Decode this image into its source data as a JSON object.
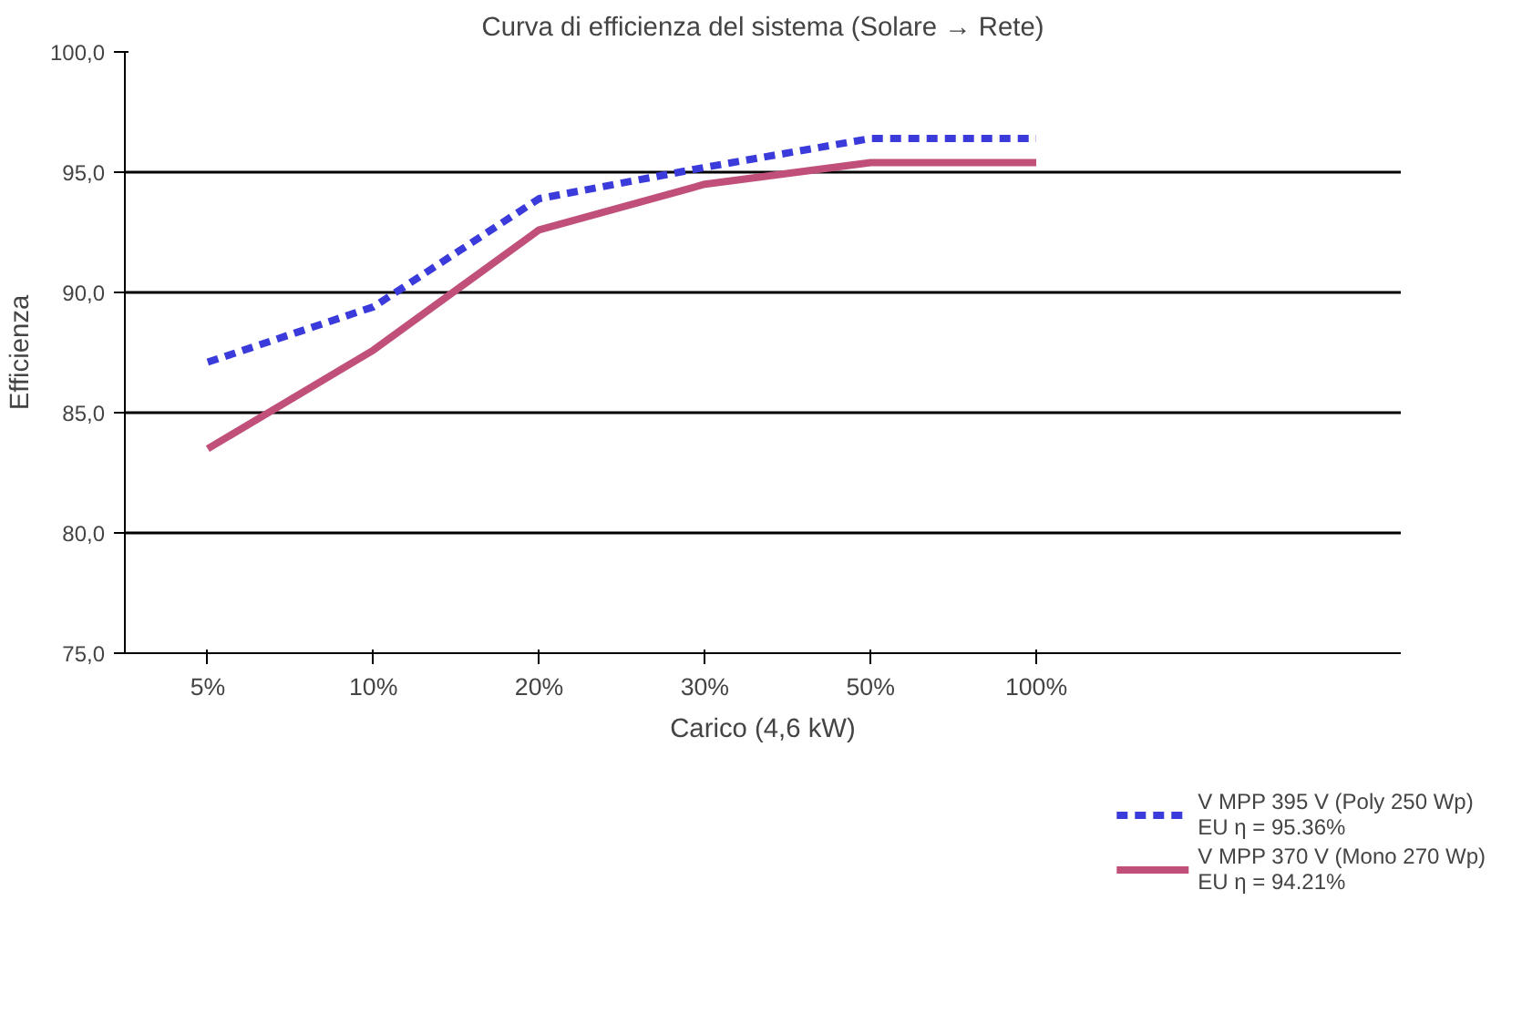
{
  "chart_data": {
    "type": "line",
    "title": "Curva di efficienza del sistema (Solare → Rete)",
    "xlabel": "Carico (4,6 kW)",
    "ylabel": "Efficienza",
    "categories": [
      "5%",
      "10%",
      "20%",
      "30%",
      "50%",
      "100%"
    ],
    "series": [
      {
        "name": "V MPP 395 V (Poly 250 Wp)",
        "color": "#3b3bdc",
        "line_style": "dashed",
        "values": [
          87.1,
          89.4,
          93.9,
          95.2,
          96.4,
          96.4
        ]
      },
      {
        "name": "V MPP 370 V (Mono 270 Wp)",
        "color": "#c0507a",
        "line_style": "solid",
        "values": [
          83.5,
          87.6,
          92.6,
          94.5,
          95.4,
          95.4
        ]
      }
    ],
    "annotations": [
      "EU η = 95.36%",
      "EU η = 94.21%"
    ],
    "ylim": [
      75,
      100
    ],
    "yticks": [
      {
        "value": 75,
        "label": "75,0"
      },
      {
        "value": 80,
        "label": "80,0"
      },
      {
        "value": 85,
        "label": "85,0"
      },
      {
        "value": 90,
        "label": "90,0"
      },
      {
        "value": 95,
        "label": "95,0"
      },
      {
        "value": 100,
        "label": "100,0"
      }
    ],
    "grid": "y",
    "legend": "bottom right",
    "marker": "none"
  }
}
